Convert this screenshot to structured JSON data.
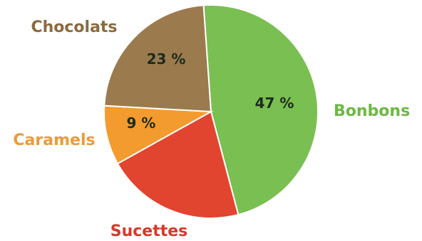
{
  "chart_data": {
    "type": "pie",
    "slices": [
      {
        "label": "Bonbons",
        "value": 47,
        "value_label": "47 %",
        "color": "#79bf51",
        "label_color": "#6cb843"
      },
      {
        "label": "Sucettes",
        "value": 21,
        "value_label": "",
        "color": "#e1442f",
        "label_color": "#d5392a"
      },
      {
        "label": "Caramels",
        "value": 9,
        "value_label": "9 %",
        "color": "#f39b2f",
        "label_color": "#ec9a3a"
      },
      {
        "label": "Chocolats",
        "value": 23,
        "value_label": "23 %",
        "color": "#9b7a4d",
        "label_color": "#8a6a3f"
      }
    ],
    "start_angle_deg": -4,
    "direction": "clockwise"
  }
}
